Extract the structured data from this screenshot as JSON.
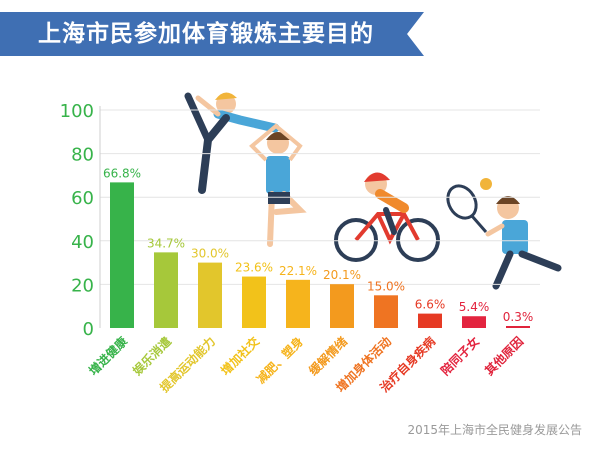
{
  "title": "上海市民参加体育锻炼主要目的",
  "source": "2015年上海市全民健身发展公告",
  "chart_data": {
    "type": "bar",
    "title": "上海市民参加体育锻炼主要目的",
    "categories": [
      "增进健康",
      "娱乐消遣",
      "提高运动能力",
      "增加社交",
      "减肥、塑身",
      "缓解情绪",
      "增加身体活动",
      "治疗自身疾病",
      "陪同子女",
      "其他原因"
    ],
    "values": [
      66.8,
      34.7,
      30.0,
      23.6,
      22.1,
      20.1,
      15.0,
      6.6,
      5.4,
      0.3
    ],
    "data_labels": [
      "66.8%",
      "34.7%",
      "30.0%",
      "23.6%",
      "22.1%",
      "20.1%",
      "15.0%",
      "6.6%",
      "5.4%",
      "0.3%"
    ],
    "colors": [
      "#37b34a",
      "#a6c83a",
      "#e2c62c",
      "#f2c21a",
      "#f6b41c",
      "#f39a1e",
      "#ef7422",
      "#e63a24",
      "#e3243f",
      "#e0233b"
    ],
    "yticks": [
      0,
      20,
      40,
      60,
      80,
      100
    ],
    "ylim": [
      0,
      100
    ],
    "xlabel": "",
    "ylabel": "",
    "grid": true,
    "tick_color": "#37b34a"
  }
}
